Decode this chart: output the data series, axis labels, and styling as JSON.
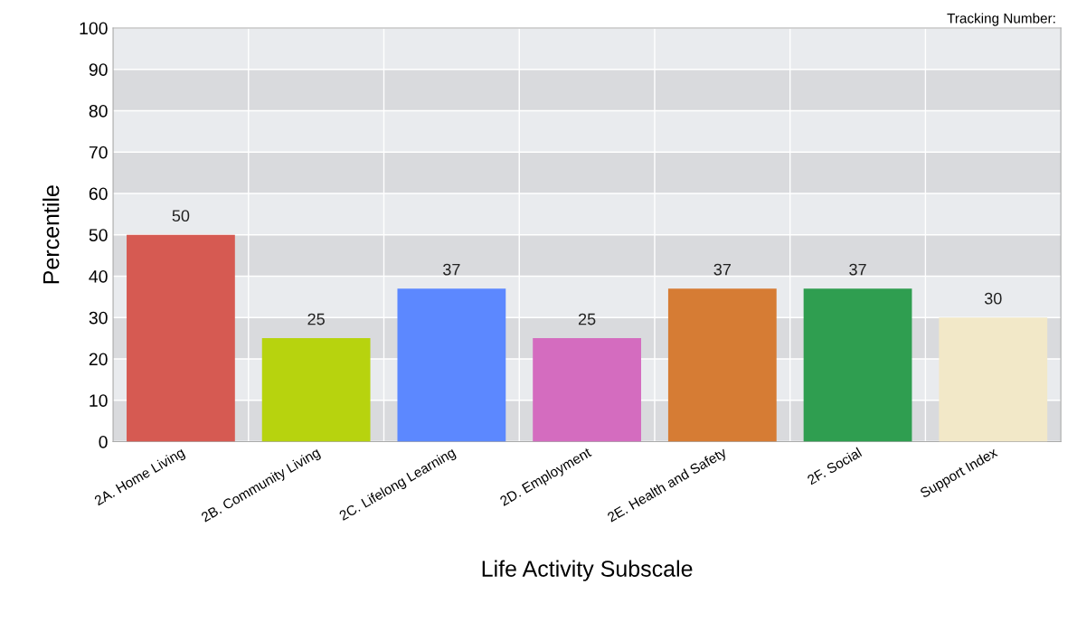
{
  "chart_data": {
    "type": "bar",
    "xlabel": "Life Activity Subscale",
    "ylabel": "Percentile",
    "annotations": [
      "Tracking Number:"
    ],
    "categories": [
      "2A. Home Living",
      "2B. Community Living",
      "2C. Lifelong Learning",
      "2D. Employment",
      "2E. Health and Safety",
      "2F. Social",
      "Support Index"
    ],
    "values": [
      50,
      25,
      37,
      25,
      37,
      37,
      30
    ],
    "colors": [
      "#d65a52",
      "#b7d30e",
      "#5c88ff",
      "#d46cbf",
      "#d67c34",
      "#2f9e50",
      "#f2e8c8"
    ],
    "data_labels": true,
    "ylim": [
      0,
      100
    ],
    "yticks": [
      0,
      10,
      20,
      30,
      40,
      50,
      60,
      70,
      80,
      90,
      100
    ],
    "grid": "y",
    "bands": [
      {
        "axis": "y",
        "from": 0,
        "to": 10,
        "color": "#d9dadd"
      },
      {
        "axis": "y",
        "from": 20,
        "to": 30,
        "color": "#d9dadd"
      },
      {
        "axis": "y",
        "from": 40,
        "to": 50,
        "color": "#d9dadd"
      },
      {
        "axis": "y",
        "from": 60,
        "to": 70,
        "color": "#d9dadd"
      },
      {
        "axis": "y",
        "from": 80,
        "to": 90,
        "color": "#d9dadd"
      }
    ]
  }
}
